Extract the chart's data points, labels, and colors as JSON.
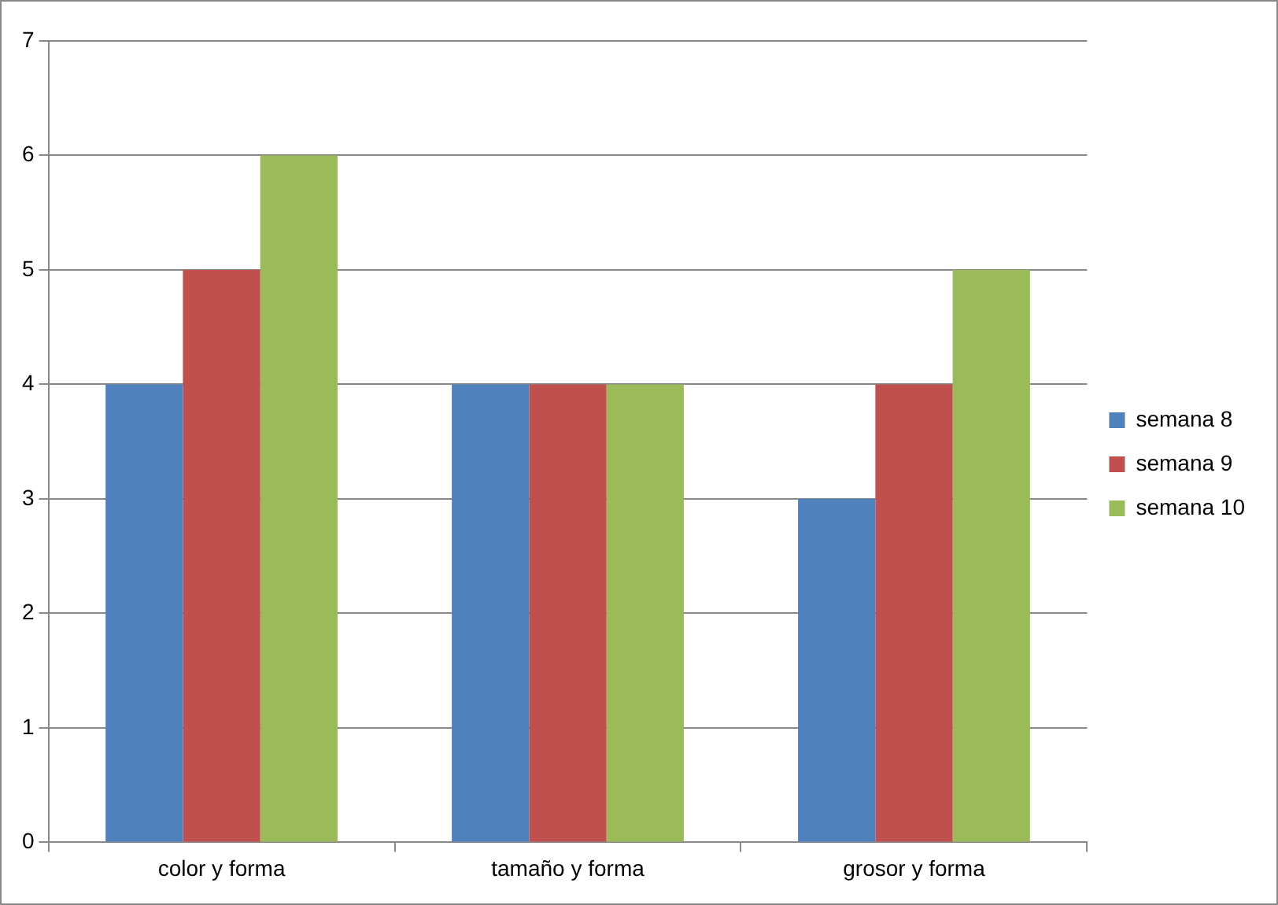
{
  "chart_data": {
    "type": "bar",
    "categories": [
      "color y forma",
      "tamaño y forma",
      "grosor y forma"
    ],
    "series": [
      {
        "name": "semana 8",
        "color": "#4f81bd",
        "values": [
          4,
          4,
          3
        ]
      },
      {
        "name": "semana 9",
        "color": "#c0504d",
        "values": [
          5,
          4,
          4
        ]
      },
      {
        "name": "semana 10",
        "color": "#9bbb59",
        "values": [
          6,
          4,
          5
        ]
      }
    ],
    "ylim": [
      0,
      7
    ],
    "yticks": [
      0,
      1,
      2,
      3,
      4,
      5,
      6,
      7
    ],
    "grid": "y",
    "legend": "right"
  }
}
